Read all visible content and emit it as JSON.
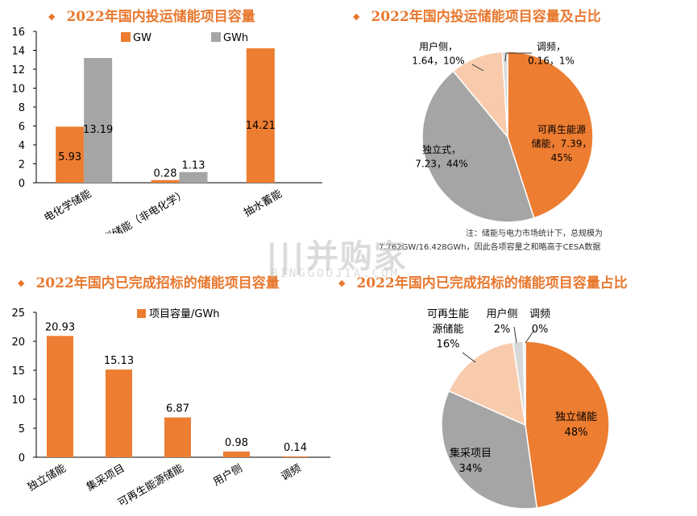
{
  "titles": {
    "tl": "2022年国内投运储能项目容量",
    "tr": "2022年国内投运储能项目容量及占比",
    "bl": "2022年国内已完成招标的储能项目容量",
    "br": "2022年国内已完成招标的储能项目容量占比"
  },
  "note": {
    "line1": "注：储能与电力市场统计下，总规模为",
    "line2": "7.762GW/16.428GWh，因此各项容量之和略高于CESA数据"
  },
  "watermark": {
    "cn": "|||并购家",
    "en": "BINGGOUJIA.COM"
  },
  "colors": {
    "orange": "#ED7D31",
    "gray": "#A5A5A5",
    "lightorange": "#F8CBAD",
    "lightgray": "#D9D9D9"
  },
  "chart_data": [
    {
      "type": "bar",
      "categories": [
        "电化学储能",
        "新型储能（非电化学）",
        "抽水蓄能"
      ],
      "series": [
        {
          "name": "GW",
          "values": [
            5.93,
            0.28,
            14.21
          ],
          "labels": [
            "5.93",
            "0.28",
            "14.21"
          ]
        },
        {
          "name": "GWh",
          "values": [
            13.19,
            1.13,
            null
          ],
          "labels": [
            "13.19",
            "1.13",
            ""
          ]
        }
      ],
      "ylim": [
        0,
        16
      ],
      "yticks": [
        "0",
        "2",
        "4",
        "6",
        "8",
        "10",
        "12",
        "14",
        "16"
      ],
      "legend": "top"
    },
    {
      "type": "pie",
      "slices": [
        {
          "label": "可再生能源储能",
          "value": 45,
          "text": [
            "可再生能源",
            "储能，7.39，",
            "45%"
          ]
        },
        {
          "label": "独立式",
          "value": 44,
          "text": [
            "独立式，",
            "7.23，44%"
          ]
        },
        {
          "label": "用户侧",
          "value": 10,
          "text": [
            "用户侧，",
            "1.64，10%"
          ]
        },
        {
          "label": "调频",
          "value": 1,
          "text": [
            "调频，",
            "0.16，1%"
          ]
        }
      ]
    },
    {
      "type": "bar",
      "categories": [
        "独立储能",
        "集采项目",
        "可再生能源储能",
        "用户侧",
        "调频"
      ],
      "series": [
        {
          "name": "项目容量/GWh",
          "values": [
            20.93,
            15.13,
            6.87,
            0.98,
            0.14
          ],
          "labels": [
            "20.93",
            "15.13",
            "6.87",
            "0.98",
            "0.14"
          ]
        }
      ],
      "ylim": [
        0,
        25
      ],
      "yticks": [
        "0",
        "5",
        "10",
        "15",
        "20",
        "25"
      ],
      "legend": "top"
    },
    {
      "type": "pie",
      "slices": [
        {
          "label": "独立储能",
          "value": 48,
          "text": [
            "独立储能",
            "48%"
          ]
        },
        {
          "label": "集采项目",
          "value": 34,
          "text": [
            "集采项目",
            "34%"
          ]
        },
        {
          "label": "可再生能源储能",
          "value": 16,
          "text": [
            "可再生能",
            "源储能",
            "16%"
          ]
        },
        {
          "label": "用户侧",
          "value": 2,
          "text": [
            "用户侧",
            "2%"
          ]
        },
        {
          "label": "调频",
          "value": 0.4,
          "text": [
            "调频",
            "0%"
          ]
        }
      ]
    }
  ]
}
